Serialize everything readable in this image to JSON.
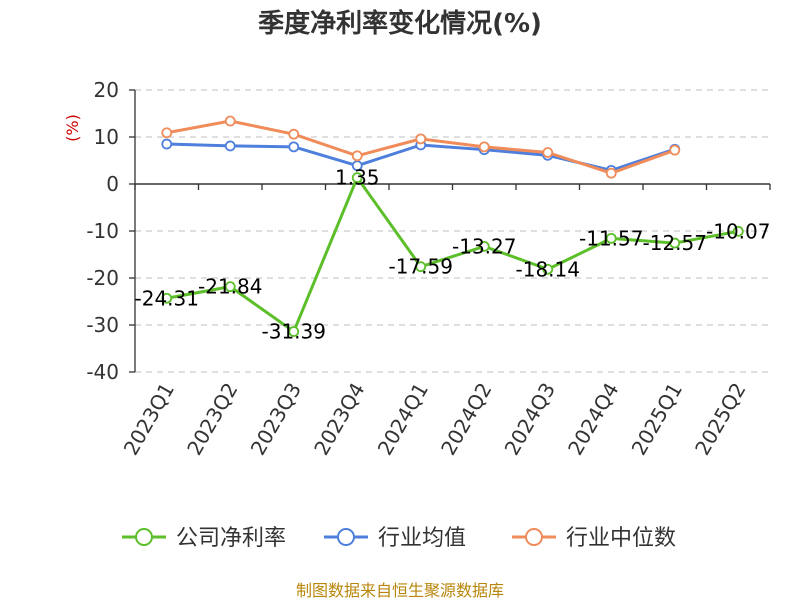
{
  "chart_data": {
    "type": "line",
    "title": "季度净利率变化情况(%)",
    "ylabel": "(%)",
    "xlabel": "",
    "categories": [
      "2023Q1",
      "2023Q2",
      "2023Q3",
      "2023Q4",
      "2024Q1",
      "2024Q2",
      "2024Q3",
      "2024Q4",
      "2025Q1",
      "2025Q2"
    ],
    "ylim": [
      -40,
      20
    ],
    "yticks": [
      20,
      10,
      0,
      -10,
      -20,
      -30,
      -40
    ],
    "grid": true,
    "legend_position": "bottom",
    "series": [
      {
        "name": "公司净利率",
        "color": "#5cbf2a",
        "labeled": true,
        "values": [
          -24.31,
          -21.84,
          -31.39,
          1.35,
          -17.59,
          -13.27,
          -18.14,
          -11.57,
          -12.57,
          -10.07
        ]
      },
      {
        "name": "行业均值",
        "color": "#4f7fdc",
        "labeled": false,
        "values": [
          8.5,
          8.1,
          7.9,
          3.9,
          8.3,
          7.3,
          6.1,
          2.9,
          7.4,
          null
        ]
      },
      {
        "name": "行业中位数",
        "color": "#f08c5a",
        "labeled": false,
        "values": [
          10.9,
          13.4,
          10.6,
          6.0,
          9.6,
          7.9,
          6.7,
          2.3,
          7.2,
          null
        ]
      }
    ]
  },
  "footer": {
    "source": "制图数据来自恒生聚源数据库"
  }
}
